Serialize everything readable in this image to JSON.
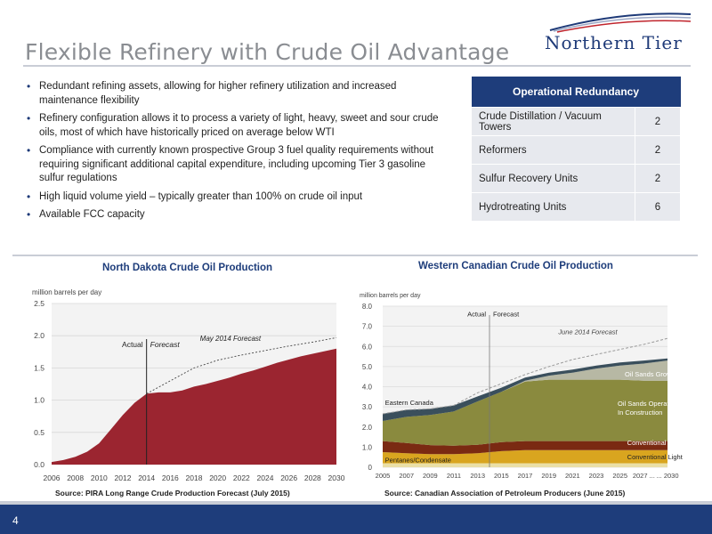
{
  "title": "Flexible Refinery with Crude Oil Advantage",
  "logo": {
    "text": "Northern Tier"
  },
  "bullets": [
    "Redundant refining assets, allowing for higher refinery utilization and increased maintenance flexibility",
    "Refinery configuration allows it to process a variety of light, heavy, sweet and sour crude oils, most of which have historically priced on average below WTI",
    "Compliance with currently known prospective Group 3 fuel quality requirements without requiring significant additional capital expenditure, including upcoming Tier 3 gasoline sulfur regulations",
    "High liquid volume yield – typically greater than 100% on crude oil input",
    "Available FCC capacity"
  ],
  "redundancy": {
    "header": "Operational Redundancy",
    "rows": [
      {
        "label": "Crude Distillation / Vacuum Towers",
        "value": "2"
      },
      {
        "label": "Reformers",
        "value": "2"
      },
      {
        "label": "Sulfur Recovery Units",
        "value": "2"
      },
      {
        "label": "Hydrotreating Units",
        "value": "6"
      }
    ]
  },
  "chart_data": [
    {
      "type": "area",
      "title": "North Dakota Crude Oil Production",
      "ylabel": "million barrels per day",
      "ylim": [
        0,
        2.5
      ],
      "yticks": [
        "0.0",
        "0.5",
        "1.0",
        "1.5",
        "2.0",
        "2.5"
      ],
      "xticks": [
        "2006",
        "2008",
        "2010",
        "2012",
        "2014",
        "2016",
        "2018",
        "2020",
        "2022",
        "2024",
        "2026",
        "2028",
        "2030"
      ],
      "series": [
        {
          "name": "Actual",
          "x": [
            2006,
            2007,
            2008,
            2009,
            2010,
            2011,
            2012,
            2013,
            2014
          ],
          "values": [
            0.04,
            0.07,
            0.12,
            0.2,
            0.33,
            0.55,
            0.77,
            0.96,
            1.1
          ]
        },
        {
          "name": "Forecast",
          "x": [
            2014,
            2015,
            2016,
            2017,
            2018,
            2019,
            2020,
            2021,
            2022,
            2023,
            2024,
            2025,
            2026,
            2027,
            2028,
            2029,
            2030
          ],
          "values": [
            1.1,
            1.12,
            1.12,
            1.15,
            1.21,
            1.25,
            1.3,
            1.35,
            1.41,
            1.46,
            1.52,
            1.58,
            1.63,
            1.68,
            1.72,
            1.76,
            1.8
          ]
        },
        {
          "name": "May 2014 Forecast",
          "x": [
            2014,
            2016,
            2018,
            2020,
            2022,
            2024,
            2026,
            2028,
            2030
          ],
          "values": [
            1.1,
            1.3,
            1.5,
            1.62,
            1.7,
            1.77,
            1.84,
            1.9,
            1.97
          ]
        }
      ],
      "annotations": [
        "Actual",
        "Forecast",
        "May 2014 Forecast"
      ],
      "source": "Source:  PIRA Long Range Crude Production Forecast (July 2015)"
    },
    {
      "type": "area",
      "title": "Western Canadian Crude Oil Production",
      "ylabel": "million barrels per day",
      "ylim": [
        0,
        8
      ],
      "yticks": [
        "0",
        "1.0",
        "2.0",
        "3.0",
        "4.0",
        "5.0",
        "6.0",
        "7.0",
        "8.0"
      ],
      "xticks": [
        "2005",
        "2007",
        "2009",
        "2011",
        "2013",
        "2015",
        "2017",
        "2019",
        "2021",
        "2023",
        "2025",
        "2027 ...",
        "... 2030"
      ],
      "x": [
        2005,
        2007,
        2009,
        2011,
        2013,
        2015,
        2017,
        2019,
        2021,
        2023,
        2025,
        2027,
        2030
      ],
      "series": [
        {
          "name": "Pentanes/Condensate",
          "values": [
            0.2,
            0.2,
            0.2,
            0.2,
            0.2,
            0.2,
            0.2,
            0.2,
            0.2,
            0.2,
            0.2,
            0.2,
            0.2
          ]
        },
        {
          "name": "Conventional Light",
          "values": [
            0.55,
            0.5,
            0.45,
            0.45,
            0.5,
            0.6,
            0.65,
            0.65,
            0.65,
            0.65,
            0.65,
            0.65,
            0.65
          ]
        },
        {
          "name": "Conventional Heavy",
          "values": [
            0.55,
            0.5,
            0.45,
            0.42,
            0.42,
            0.45,
            0.45,
            0.45,
            0.45,
            0.45,
            0.45,
            0.45,
            0.45
          ]
        },
        {
          "name": "Oil Sands Operating & In Construction",
          "values": [
            1.0,
            1.3,
            1.5,
            1.7,
            2.15,
            2.5,
            2.95,
            3.05,
            3.05,
            3.05,
            3.05,
            3.0,
            3.0
          ]
        },
        {
          "name": "Oil Sands Growth",
          "values": [
            0,
            0,
            0,
            0,
            0,
            0,
            0.05,
            0.2,
            0.35,
            0.55,
            0.7,
            0.85,
            1.0
          ]
        },
        {
          "name": "Eastern Canada",
          "values": [
            0.35,
            0.35,
            0.3,
            0.3,
            0.25,
            0.2,
            0.15,
            0.15,
            0.15,
            0.15,
            0.15,
            0.15,
            0.1
          ]
        }
      ],
      "forecast_line": {
        "name": "June 2014 Forecast",
        "values": [
          2.65,
          2.85,
          2.9,
          3.07,
          3.7,
          4.15,
          4.6,
          5.0,
          5.35,
          5.6,
          5.85,
          6.1,
          6.4
        ]
      },
      "annotations": [
        "Actual",
        "Forecast",
        "June 2014 Forecast",
        "Eastern Canada",
        "Oil Sands Growth",
        "Oil Sands Operating & In Construction",
        "Conventional Heavy",
        "Conventional Light",
        "Pentanes/Condensate"
      ],
      "source": "Source: Canadian Association of Petroleum Producers (June 2015)"
    }
  ],
  "colors": {
    "navy": "#1e3d7b",
    "nd_area": "#9b2530",
    "eastern": "#3a4f5c",
    "sands_growth": "#b7b8a4",
    "sands_op": "#8a8a3e",
    "conv_heavy": "#7a2a12",
    "conv_light": "#d9a51f",
    "pentanes": "#eadfa6"
  },
  "page_number": "4"
}
